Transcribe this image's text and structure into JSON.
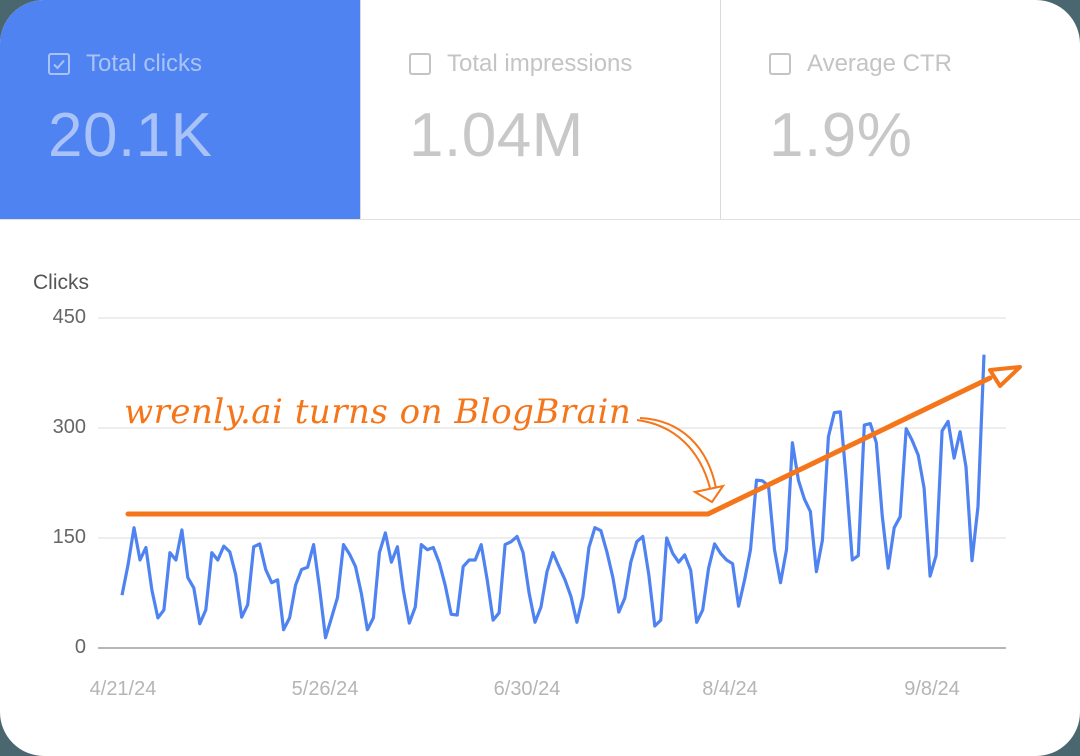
{
  "metrics": [
    {
      "label": "Total clicks",
      "value": "20.1K",
      "checked": true
    },
    {
      "label": "Total impressions",
      "value": "1.04M",
      "checked": false
    },
    {
      "label": "Average CTR",
      "value": "1.9%",
      "checked": false
    }
  ],
  "chart": {
    "y_title": "Clicks",
    "y_ticks": [
      "450",
      "300",
      "150",
      "0"
    ],
    "x_ticks": [
      "4/21/24",
      "5/26/24",
      "6/30/24",
      "8/4/24",
      "9/8/24"
    ],
    "annotation": "wrenly.ai turns on BlogBrain",
    "colors": {
      "line": "#4f83f1",
      "annotation": "#f5761a",
      "grid": "#e8e8e8",
      "axis": "#9e9e9e"
    }
  },
  "chart_data": {
    "type": "line",
    "title": "",
    "xlabel": "",
    "ylabel": "Clicks",
    "ylim": [
      0,
      450
    ],
    "y_ticks": [
      0,
      150,
      300,
      450
    ],
    "x_tick_labels": [
      "4/21/24",
      "5/26/24",
      "6/30/24",
      "8/4/24",
      "9/8/24"
    ],
    "x_start": "4/21/24",
    "x_end": "9/16/24",
    "grid": true,
    "legend": "none",
    "series": [
      {
        "name": "Clicks",
        "color": "#4f83f1",
        "values": [
          72,
          113,
          164,
          120,
          137,
          79,
          41,
          52,
          130,
          120,
          161,
          96,
          82,
          33,
          52,
          130,
          120,
          139,
          131,
          100,
          42,
          59,
          138,
          142,
          107,
          89,
          93,
          25,
          41,
          86,
          107,
          110,
          141,
          82,
          14,
          41,
          69,
          141,
          128,
          111,
          74,
          25,
          41,
          130,
          157,
          117,
          138,
          79,
          34,
          56,
          141,
          134,
          137,
          116,
          85,
          46,
          45,
          111,
          120,
          120,
          141,
          93,
          38,
          48,
          141,
          145,
          152,
          130,
          75,
          35,
          56,
          104,
          130,
          111,
          93,
          70,
          35,
          70,
          137,
          164,
          160,
          131,
          96,
          49,
          68,
          117,
          145,
          152,
          100,
          30,
          38,
          150,
          129,
          117,
          127,
          106,
          35,
          52,
          109,
          142,
          129,
          120,
          115,
          57,
          93,
          134,
          229,
          228,
          221,
          134,
          89,
          134,
          280,
          229,
          203,
          186,
          104,
          147,
          288,
          321,
          322,
          229,
          120,
          126,
          304,
          306,
          280,
          181,
          109,
          164,
          179,
          299,
          283,
          263,
          218,
          98,
          126,
          296,
          309,
          259,
          295,
          247,
          119,
          193,
          400
        ]
      },
      {
        "name": "Annotation trend (flat then rising)",
        "color": "#f5761a",
        "points": [
          {
            "date": "4/21/24",
            "value": 183
          },
          {
            "date": "8/4/24",
            "value": 183
          },
          {
            "date": "9/16/24",
            "value": 383
          }
        ]
      }
    ],
    "annotations": [
      {
        "text": "wrenly.ai turns on BlogBrain",
        "points_to": "8/4/24"
      }
    ]
  }
}
